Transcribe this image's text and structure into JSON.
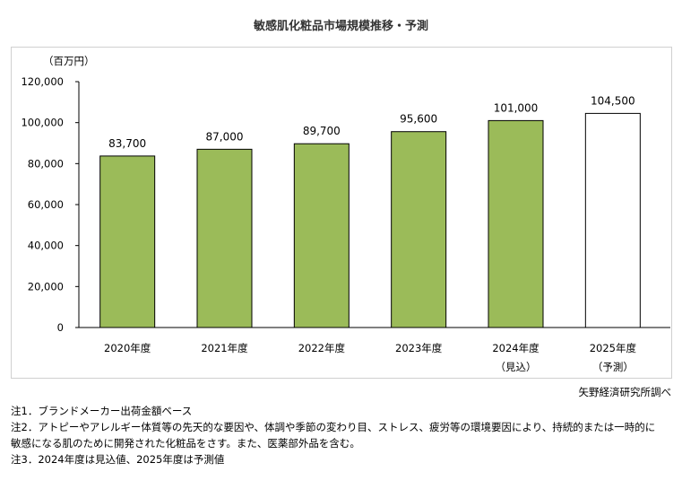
{
  "chart_data": {
    "type": "bar",
    "title": "敏感肌化粧品市場規模推移・予測",
    "unit_label": "（百万円）",
    "categories": [
      "2020年度",
      "2021年度",
      "2022年度",
      "2023年度",
      "2024年度",
      "2025年度"
    ],
    "category_sublabels": [
      "",
      "",
      "",
      "",
      "（見込）",
      "（予測）"
    ],
    "values": [
      83700,
      87000,
      89700,
      95600,
      101000,
      104500
    ],
    "value_labels": [
      "83,700",
      "87,000",
      "89,700",
      "95,600",
      "101,000",
      "104,500"
    ],
    "bar_styles": [
      "actual",
      "actual",
      "actual",
      "actual",
      "actual",
      "forecast"
    ],
    "ylim": [
      0,
      120000
    ],
    "yticks": [
      0,
      20000,
      40000,
      60000,
      80000,
      100000,
      120000
    ],
    "ytick_labels": [
      "0",
      "20,000",
      "40,000",
      "60,000",
      "80,000",
      "100,000",
      "120,000"
    ],
    "grid": false,
    "colors": {
      "actual_fill": "#9bbb59",
      "forecast_fill": "#ffffff",
      "bar_stroke": "#000000"
    }
  },
  "source": "矢野経済研究所調べ",
  "notes": [
    "注1．ブランドメーカー出荷金額ベース",
    "注2．アトピーやアレルギー体質等の先天的な要因や、体調や季節の変わり目、ストレス、疲労等の環境要因により、持続的または一時的に",
    "敏感になる肌のために開発された化粧品をさす。また、医薬部外品を含む。",
    "注3．2024年度は見込値、2025年度は予測値"
  ]
}
